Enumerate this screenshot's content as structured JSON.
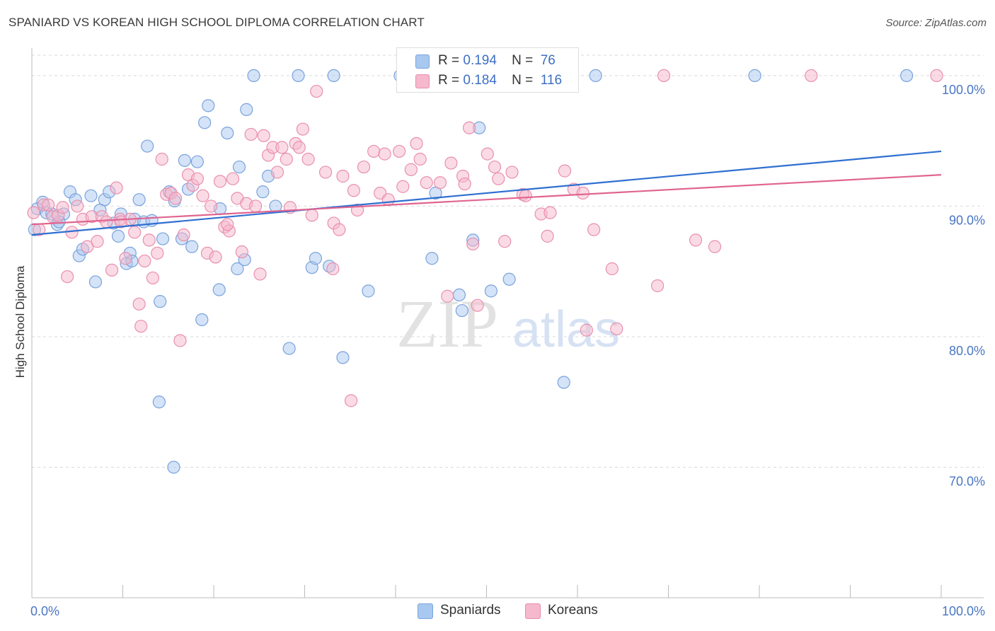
{
  "title": "SPANIARD VS KOREAN HIGH SCHOOL DIPLOMA CORRELATION CHART",
  "source": "Source: ZipAtlas.com",
  "watermark": {
    "zip": "ZIP",
    "atlas": "atlas"
  },
  "legend_top": {
    "rows": [
      {
        "r_label": "R =",
        "r_value": "0.194",
        "n_label": "N =",
        "n_value": "76"
      },
      {
        "r_label": "R =",
        "r_value": "0.184",
        "n_label": "N =",
        "n_value": "116"
      }
    ]
  },
  "legend_bottom": {
    "items": [
      "Spaniards",
      "Koreans"
    ]
  },
  "colors": {
    "spaniards_fill": "#a9c8f0",
    "spaniards_stroke": "#7aa3dc",
    "spaniards_line": "#2f6fd1",
    "koreans_fill": "#f5b8cc",
    "koreans_stroke": "#e98fad",
    "koreans_line": "#e06590",
    "tick_text": "#4a76c4",
    "grid": "#d9d9d9"
  },
  "chart_data": {
    "type": "scatter",
    "title": "SPANIARD VS KOREAN HIGH SCHOOL DIPLOMA CORRELATION CHART",
    "xlabel": "",
    "ylabel": "High School Diploma",
    "xlim": [
      0,
      100
    ],
    "ylim": [
      60,
      102
    ],
    "x_tick_labels": [
      "0.0%",
      "100.0%"
    ],
    "y_ticks": [
      70,
      80,
      90,
      100
    ],
    "y_tick_labels": [
      "70.0%",
      "80.0%",
      "90.0%",
      "100.0%"
    ],
    "grid": true,
    "legend": "top-center",
    "series": [
      {
        "name": "Spaniards",
        "r": 0.194,
        "n": 76,
        "trend": {
          "x": [
            0,
            100
          ],
          "y": [
            87.8,
            94.2
          ]
        },
        "points": [
          [
            0.3,
            88.2
          ],
          [
            0.6,
            89.8
          ],
          [
            1.2,
            90.3
          ],
          [
            1.6,
            89.5
          ],
          [
            2.2,
            89.4
          ],
          [
            2.8,
            88.6
          ],
          [
            3.5,
            89.4
          ],
          [
            4.2,
            91.1
          ],
          [
            4.8,
            90.5
          ],
          [
            5.2,
            86.2
          ],
          [
            5.6,
            86.7
          ],
          [
            6.5,
            90.8
          ],
          [
            7.0,
            84.2
          ],
          [
            7.5,
            89.7
          ],
          [
            8.0,
            90.5
          ],
          [
            8.5,
            91.1
          ],
          [
            9.0,
            88.7
          ],
          [
            9.5,
            87.7
          ],
          [
            9.8,
            89.4
          ],
          [
            10.4,
            85.6
          ],
          [
            10.8,
            86.4
          ],
          [
            11.3,
            89.0
          ],
          [
            11.8,
            90.5
          ],
          [
            12.3,
            88.8
          ],
          [
            12.7,
            94.6
          ],
          [
            13.2,
            88.9
          ],
          [
            14.1,
            82.7
          ],
          [
            14.4,
            87.5
          ],
          [
            15.1,
            91.1
          ],
          [
            15.7,
            90.4
          ],
          [
            16.5,
            87.5
          ],
          [
            16.8,
            93.5
          ],
          [
            17.2,
            91.3
          ],
          [
            17.6,
            86.9
          ],
          [
            18.2,
            93.4
          ],
          [
            18.7,
            81.3
          ],
          [
            19.0,
            96.4
          ],
          [
            19.4,
            97.7
          ],
          [
            20.6,
            83.6
          ],
          [
            20.7,
            89.8
          ],
          [
            21.5,
            95.6
          ],
          [
            22.6,
            85.2
          ],
          [
            22.8,
            93.0
          ],
          [
            23.4,
            85.9
          ],
          [
            23.6,
            97.4
          ],
          [
            24.4,
            100.0
          ],
          [
            25.4,
            91.1
          ],
          [
            26.0,
            92.3
          ],
          [
            26.8,
            90.0
          ],
          [
            28.3,
            79.1
          ],
          [
            29.3,
            100.0
          ],
          [
            30.8,
            85.3
          ],
          [
            31.2,
            86.0
          ],
          [
            32.7,
            85.4
          ],
          [
            33.2,
            100.0
          ],
          [
            34.2,
            78.4
          ],
          [
            37.0,
            83.5
          ],
          [
            40.5,
            100.0
          ],
          [
            44.0,
            86.0
          ],
          [
            44.4,
            91.0
          ],
          [
            45.0,
            100.0
          ],
          [
            47.0,
            83.2
          ],
          [
            47.3,
            82.0
          ],
          [
            48.5,
            87.4
          ],
          [
            49.2,
            96.0
          ],
          [
            50.5,
            83.5
          ],
          [
            52.5,
            84.4
          ],
          [
            56.1,
            100.0
          ],
          [
            58.5,
            76.5
          ],
          [
            62.0,
            100.0
          ],
          [
            79.5,
            100.0
          ],
          [
            96.2,
            100.0
          ],
          [
            14.0,
            75.0
          ],
          [
            15.6,
            70.0
          ],
          [
            3.0,
            88.8
          ],
          [
            11.0,
            85.8
          ]
        ]
      },
      {
        "name": "Koreans",
        "r": 0.184,
        "n": 116,
        "trend": {
          "x": [
            0,
            100
          ],
          "y": [
            88.6,
            92.4
          ]
        },
        "points": [
          [
            0.2,
            89.5
          ],
          [
            0.8,
            88.2
          ],
          [
            1.3,
            90.1
          ],
          [
            1.8,
            90.1
          ],
          [
            2.3,
            89.2
          ],
          [
            2.9,
            89.3
          ],
          [
            3.4,
            89.9
          ],
          [
            3.9,
            84.6
          ],
          [
            4.4,
            88.0
          ],
          [
            5.0,
            90.0
          ],
          [
            5.6,
            89.0
          ],
          [
            6.1,
            86.9
          ],
          [
            6.6,
            89.2
          ],
          [
            7.2,
            87.3
          ],
          [
            7.7,
            89.2
          ],
          [
            8.2,
            88.8
          ],
          [
            8.8,
            85.1
          ],
          [
            9.3,
            91.4
          ],
          [
            9.7,
            89.0
          ],
          [
            10.3,
            86.0
          ],
          [
            10.8,
            89.0
          ],
          [
            11.3,
            88.0
          ],
          [
            11.8,
            82.5
          ],
          [
            12.4,
            85.8
          ],
          [
            12.9,
            87.4
          ],
          [
            13.3,
            84.5
          ],
          [
            13.8,
            86.4
          ],
          [
            14.3,
            93.6
          ],
          [
            14.8,
            90.9
          ],
          [
            15.3,
            91.0
          ],
          [
            15.8,
            90.6
          ],
          [
            16.3,
            79.7
          ],
          [
            16.7,
            87.8
          ],
          [
            17.2,
            92.4
          ],
          [
            17.7,
            91.6
          ],
          [
            18.2,
            92.1
          ],
          [
            18.8,
            90.8
          ],
          [
            19.3,
            86.4
          ],
          [
            19.7,
            90.0
          ],
          [
            20.2,
            86.1
          ],
          [
            20.7,
            91.9
          ],
          [
            21.2,
            88.4
          ],
          [
            21.7,
            88.1
          ],
          [
            22.1,
            92.1
          ],
          [
            22.6,
            90.6
          ],
          [
            23.1,
            86.5
          ],
          [
            23.6,
            90.2
          ],
          [
            24.1,
            95.5
          ],
          [
            24.6,
            90.0
          ],
          [
            25.1,
            84.8
          ],
          [
            25.5,
            95.4
          ],
          [
            26.0,
            93.9
          ],
          [
            26.5,
            94.5
          ],
          [
            27.0,
            92.6
          ],
          [
            27.5,
            94.5
          ],
          [
            28.0,
            93.6
          ],
          [
            28.4,
            89.9
          ],
          [
            29.0,
            94.8
          ],
          [
            29.4,
            94.5
          ],
          [
            29.8,
            95.9
          ],
          [
            30.4,
            93.6
          ],
          [
            30.8,
            89.3
          ],
          [
            31.3,
            98.8
          ],
          [
            32.3,
            92.6
          ],
          [
            33.2,
            88.7
          ],
          [
            33.8,
            88.2
          ],
          [
            34.2,
            92.3
          ],
          [
            35.4,
            91.2
          ],
          [
            35.8,
            89.7
          ],
          [
            36.5,
            93.0
          ],
          [
            37.6,
            94.2
          ],
          [
            38.3,
            91.0
          ],
          [
            38.8,
            94.0
          ],
          [
            39.2,
            90.5
          ],
          [
            40.4,
            94.2
          ],
          [
            40.8,
            91.5
          ],
          [
            41.7,
            92.8
          ],
          [
            42.3,
            94.8
          ],
          [
            42.7,
            93.6
          ],
          [
            43.4,
            91.8
          ],
          [
            44.9,
            91.8
          ],
          [
            45.7,
            83.1
          ],
          [
            46.1,
            93.3
          ],
          [
            47.4,
            92.3
          ],
          [
            47.6,
            91.7
          ],
          [
            48.1,
            96.0
          ],
          [
            48.5,
            87.1
          ],
          [
            49.0,
            82.4
          ],
          [
            50.1,
            94.0
          ],
          [
            50.9,
            93.0
          ],
          [
            51.3,
            92.1
          ],
          [
            52.0,
            87.3
          ],
          [
            52.8,
            92.6
          ],
          [
            54.0,
            90.9
          ],
          [
            54.3,
            90.8
          ],
          [
            56.0,
            89.4
          ],
          [
            56.7,
            87.7
          ],
          [
            57.0,
            89.5
          ],
          [
            58.6,
            92.7
          ],
          [
            59.6,
            91.3
          ],
          [
            60.6,
            91.0
          ],
          [
            61.0,
            80.5
          ],
          [
            61.8,
            88.2
          ],
          [
            63.8,
            85.2
          ],
          [
            64.3,
            80.6
          ],
          [
            68.8,
            83.9
          ],
          [
            69.5,
            100.0
          ],
          [
            73.0,
            87.4
          ],
          [
            75.1,
            86.9
          ],
          [
            85.7,
            100.0
          ],
          [
            99.5,
            100.0
          ],
          [
            35.1,
            75.1
          ],
          [
            33.1,
            85.2
          ],
          [
            21.5,
            88.6
          ],
          [
            12.0,
            80.8
          ],
          [
            9.8,
            88.8
          ]
        ]
      }
    ]
  }
}
